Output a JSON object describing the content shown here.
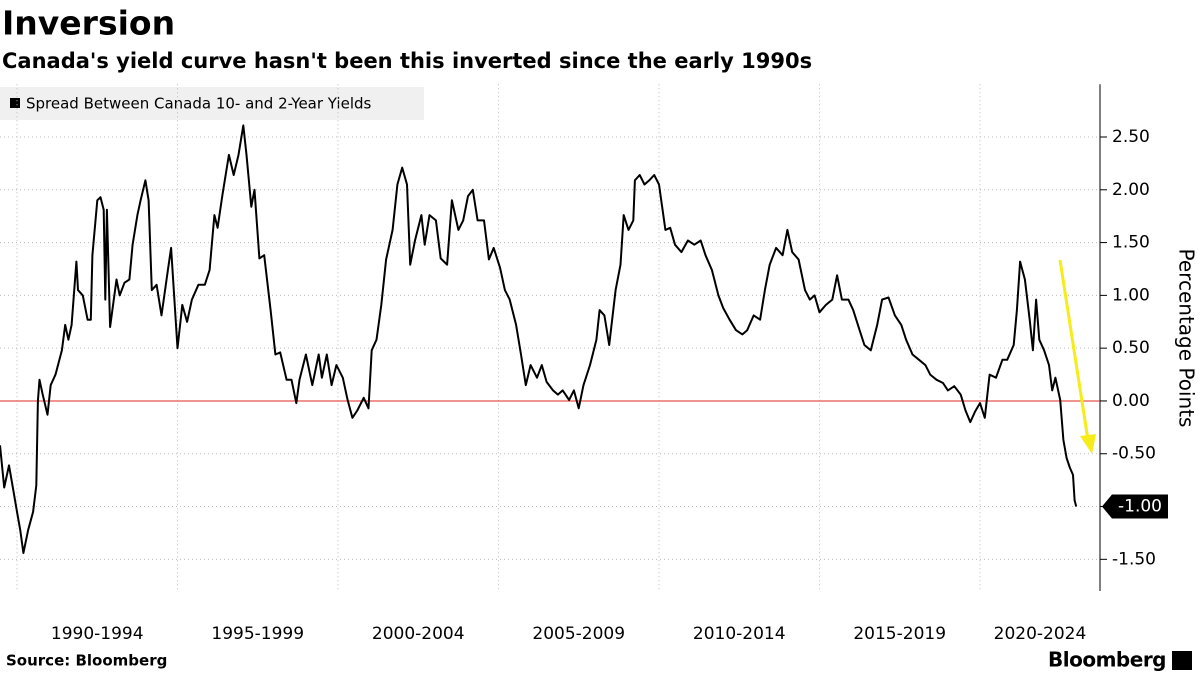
{
  "chart_data": {
    "type": "line",
    "title": "Inversion",
    "subtitle": "Canada's yield curve hasn't been this inverted since the early 1990s",
    "y_axis_label": "Percentage Points",
    "source": "Source: Bloomberg",
    "brand": "Bloomberg",
    "legend_position": "top-left",
    "grid": true,
    "zero_line_color": "#e0291f",
    "xlim": [
      1989.47,
      2023.74
    ],
    "xticks": [
      {
        "value": 1990,
        "label": "1990-1994"
      },
      {
        "value": 1995,
        "label": "1995-1999"
      },
      {
        "value": 2000,
        "label": "2000-2004"
      },
      {
        "value": 2005,
        "label": "2005-2009"
      },
      {
        "value": 2010,
        "label": "2010-2014"
      },
      {
        "value": 2015,
        "label": "2015-2019"
      },
      {
        "value": 2020,
        "label": "2020-2024"
      }
    ],
    "ylim": [
      -1.8,
      3.0
    ],
    "yticks": [
      {
        "value": -1.5,
        "label": "-1.50"
      },
      {
        "value": -1.0,
        "label": "-1.00"
      },
      {
        "value": -0.5,
        "label": "-0.50"
      },
      {
        "value": 0,
        "label": "0.00"
      },
      {
        "value": 0.5,
        "label": "0.50"
      },
      {
        "value": 1.0,
        "label": "1.00"
      },
      {
        "value": 1.5,
        "label": "1.50"
      },
      {
        "value": 2.0,
        "label": "2.00"
      },
      {
        "value": 2.5,
        "label": "2.50"
      }
    ],
    "last_value_label": {
      "value": -1.0,
      "label": "-1.00"
    },
    "series": [
      {
        "name": "Spread Between Canada 10- and 2-Year Yields",
        "color": "#000000",
        "x": [
          1989.47,
          1989.6,
          1989.75,
          1989.88,
          1990.0,
          1990.1,
          1990.2,
          1990.35,
          1990.5,
          1990.6,
          1990.65,
          1990.7,
          1990.8,
          1990.95,
          1991.05,
          1991.2,
          1991.4,
          1991.5,
          1991.6,
          1991.7,
          1991.85,
          1991.9,
          1992.05,
          1992.2,
          1992.3,
          1992.35,
          1992.5,
          1992.6,
          1992.7,
          1992.75,
          1992.8,
          1992.9,
          1993.1,
          1993.2,
          1993.35,
          1993.5,
          1993.6,
          1993.75,
          1993.85,
          1994.0,
          1994.1,
          1994.2,
          1994.35,
          1994.5,
          1994.7,
          1994.8,
          1995.0,
          1995.15,
          1995.3,
          1995.45,
          1995.65,
          1995.85,
          1996.0,
          1996.15,
          1996.25,
          1996.4,
          1996.6,
          1996.75,
          1996.9,
          1997.05,
          1997.15,
          1997.3,
          1997.4,
          1997.55,
          1997.7,
          1997.9,
          1998.05,
          1998.2,
          1998.4,
          1998.55,
          1998.7,
          1998.8,
          1999.0,
          1999.2,
          1999.4,
          1999.5,
          1999.65,
          1999.8,
          1999.95,
          2000.15,
          2000.3,
          2000.45,
          2000.6,
          2000.8,
          2000.95,
          2001.05,
          2001.2,
          2001.35,
          2001.5,
          2001.7,
          2001.85,
          2002.0,
          2002.15,
          2002.25,
          2002.4,
          2002.6,
          2002.7,
          2002.85,
          2003.05,
          2003.2,
          2003.4,
          2003.55,
          2003.75,
          2003.9,
          2004.05,
          2004.2,
          2004.35,
          2004.55,
          2004.7,
          2004.85,
          2005.05,
          2005.2,
          2005.35,
          2005.55,
          2005.7,
          2005.85,
          2006.0,
          2006.2,
          2006.35,
          2006.5,
          2006.7,
          2006.85,
          2007.0,
          2007.2,
          2007.35,
          2007.5,
          2007.65,
          2007.85,
          2008.05,
          2008.15,
          2008.3,
          2008.45,
          2008.65,
          2008.8,
          2008.9,
          2009.05,
          2009.2,
          2009.25,
          2009.4,
          2009.55,
          2009.7,
          2009.85,
          2010.0,
          2010.2,
          2010.35,
          2010.5,
          2010.7,
          2010.9,
          2011.1,
          2011.3,
          2011.45,
          2011.65,
          2011.85,
          2012.0,
          2012.2,
          2012.4,
          2012.6,
          2012.75,
          2012.95,
          2013.15,
          2013.3,
          2013.45,
          2013.65,
          2013.85,
          2014.0,
          2014.15,
          2014.35,
          2014.55,
          2014.7,
          2014.85,
          2015.0,
          2015.2,
          2015.4,
          2015.55,
          2015.7,
          2015.9,
          2016.05,
          2016.25,
          2016.4,
          2016.6,
          2016.8,
          2016.95,
          2017.15,
          2017.35,
          2017.55,
          2017.7,
          2017.9,
          2018.1,
          2018.3,
          2018.45,
          2018.65,
          2018.85,
          2019.0,
          2019.2,
          2019.4,
          2019.55,
          2019.7,
          2019.85,
          2020.0,
          2020.15,
          2020.3,
          2020.5,
          2020.7,
          2020.85,
          2021.05,
          2021.15,
          2021.25,
          2021.4,
          2021.55,
          2021.65,
          2021.75,
          2021.85,
          2022.0,
          2022.15,
          2022.25,
          2022.35,
          2022.5,
          2022.6,
          2022.7,
          2022.8,
          2022.9,
          2022.95,
          2023.0
        ],
        "values": [
          -0.42,
          -0.82,
          -0.61,
          -0.84,
          -1.05,
          -1.22,
          -1.44,
          -1.22,
          -1.05,
          -0.8,
          0.0,
          0.2,
          0.06,
          -0.13,
          0.15,
          0.25,
          0.48,
          0.72,
          0.58,
          0.72,
          1.32,
          1.05,
          1.0,
          0.77,
          0.77,
          1.38,
          1.9,
          1.93,
          1.81,
          0.96,
          1.81,
          0.7,
          1.15,
          1.0,
          1.12,
          1.15,
          1.48,
          1.76,
          1.9,
          2.09,
          1.9,
          1.05,
          1.1,
          0.81,
          1.24,
          1.45,
          0.5,
          0.91,
          0.75,
          0.96,
          1.1,
          1.1,
          1.24,
          1.76,
          1.64,
          1.95,
          2.33,
          2.14,
          2.33,
          2.61,
          2.33,
          1.84,
          2.0,
          1.35,
          1.38,
          0.86,
          0.44,
          0.46,
          0.2,
          0.2,
          -0.02,
          0.2,
          0.44,
          0.15,
          0.44,
          0.22,
          0.44,
          0.15,
          0.34,
          0.22,
          0.01,
          -0.16,
          -0.09,
          0.03,
          -0.07,
          0.48,
          0.58,
          0.91,
          1.34,
          1.62,
          2.05,
          2.21,
          2.05,
          1.29,
          1.52,
          1.76,
          1.48,
          1.76,
          1.71,
          1.35,
          1.29,
          1.9,
          1.62,
          1.71,
          1.94,
          2.0,
          1.71,
          1.71,
          1.34,
          1.45,
          1.26,
          1.05,
          0.96,
          0.72,
          0.44,
          0.15,
          0.34,
          0.22,
          0.34,
          0.18,
          0.1,
          0.06,
          0.1,
          0.01,
          0.1,
          -0.07,
          0.15,
          0.34,
          0.58,
          0.86,
          0.81,
          0.53,
          1.05,
          1.29,
          1.76,
          1.62,
          1.71,
          2.09,
          2.14,
          2.05,
          2.09,
          2.14,
          2.05,
          1.62,
          1.64,
          1.48,
          1.41,
          1.52,
          1.48,
          1.52,
          1.38,
          1.24,
          1.0,
          0.88,
          0.77,
          0.67,
          0.63,
          0.67,
          0.81,
          0.77,
          1.05,
          1.29,
          1.45,
          1.38,
          1.62,
          1.41,
          1.34,
          1.05,
          0.96,
          1.0,
          0.84,
          0.91,
          0.96,
          1.19,
          0.96,
          0.96,
          0.86,
          0.67,
          0.53,
          0.48,
          0.72,
          0.96,
          0.98,
          0.81,
          0.72,
          0.58,
          0.44,
          0.39,
          0.34,
          0.25,
          0.2,
          0.17,
          0.1,
          0.14,
          0.06,
          -0.09,
          -0.2,
          -0.1,
          -0.02,
          -0.16,
          0.25,
          0.22,
          0.39,
          0.39,
          0.53,
          0.86,
          1.32,
          1.15,
          0.77,
          0.48,
          0.96,
          0.58,
          0.48,
          0.34,
          0.1,
          0.22,
          0.01,
          -0.37,
          -0.54,
          -0.63,
          -0.7,
          -0.94,
          -1.0
        ]
      }
    ]
  }
}
